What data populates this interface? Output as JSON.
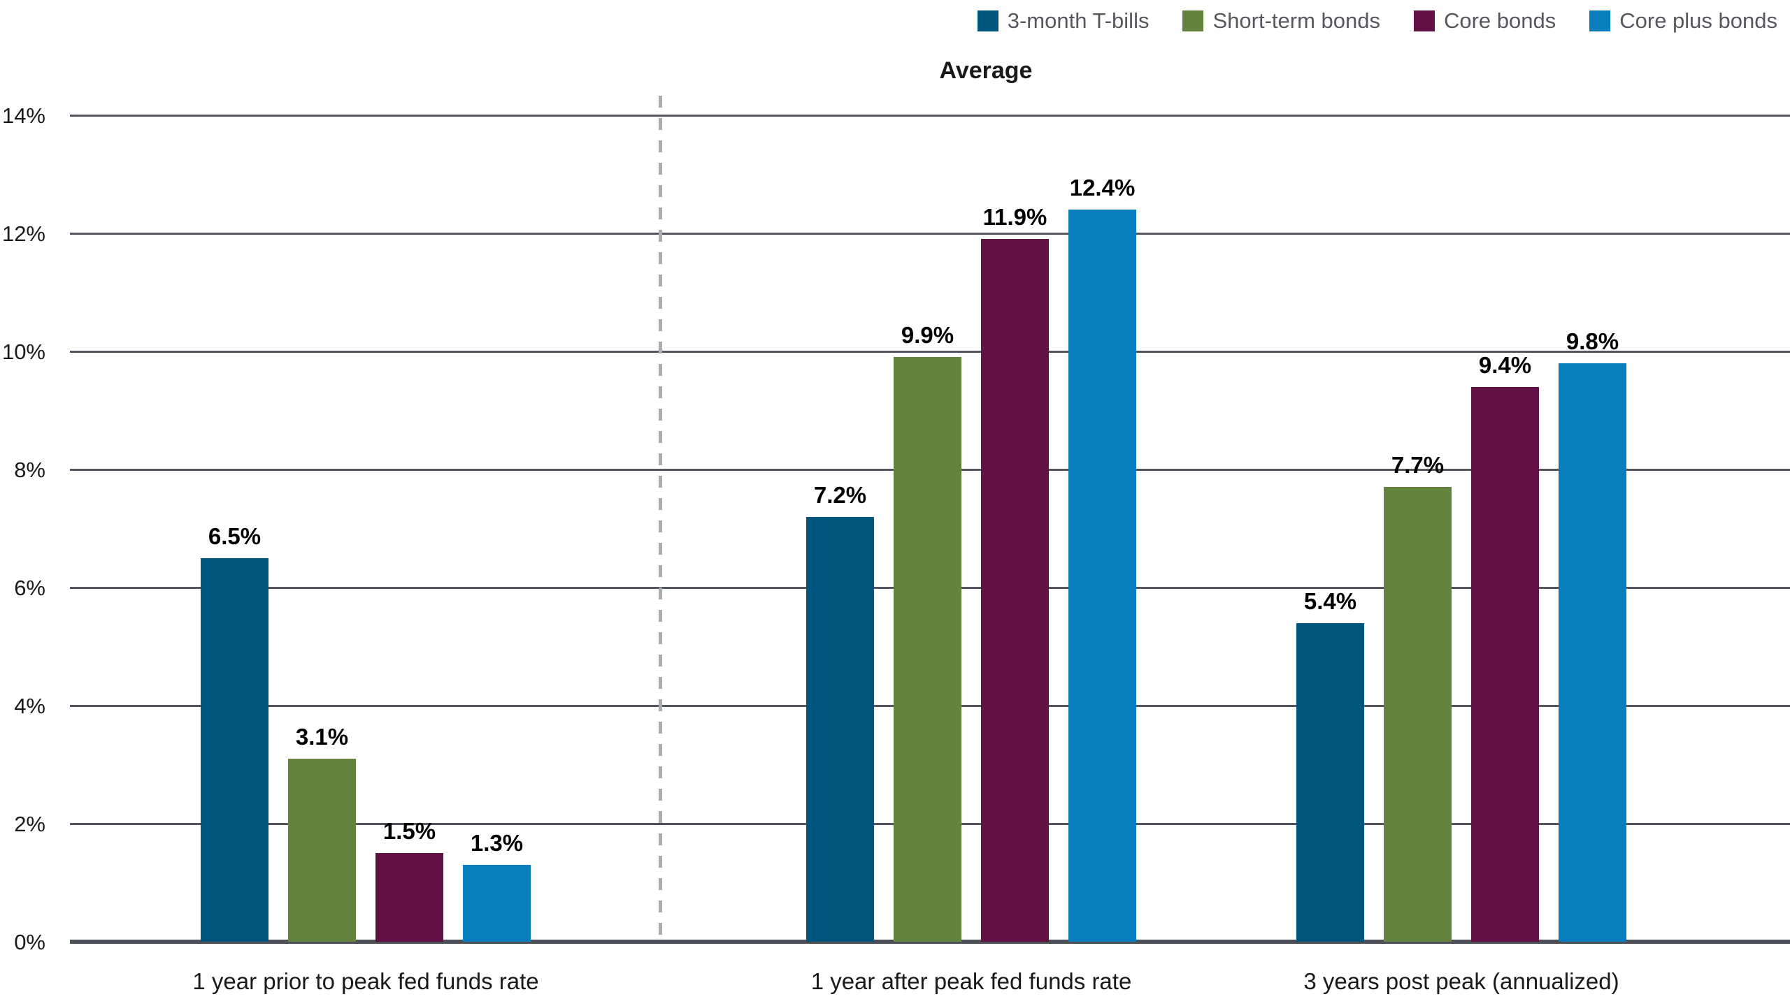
{
  "chart_data": {
    "type": "bar",
    "title": "Average",
    "categories": [
      "1 year prior to peak fed funds rate",
      "1 year after peak fed funds rate",
      "3 years post peak (annualized)"
    ],
    "series": [
      {
        "name": "3-month T-bills",
        "color": "#00567E",
        "values": [
          6.5,
          7.2,
          5.4
        ],
        "labels": [
          "6.5%",
          "7.2%",
          "5.4%"
        ]
      },
      {
        "name": "Short-term bonds",
        "color": "#63833E",
        "values": [
          3.1,
          9.9,
          7.7
        ],
        "labels": [
          "3.1%",
          "9.9%",
          "7.7%"
        ]
      },
      {
        "name": "Core bonds",
        "color": "#611144",
        "values": [
          1.5,
          11.9,
          9.4
        ],
        "labels": [
          "1.5%",
          "11.9%",
          "9.4%"
        ]
      },
      {
        "name": "Core plus bonds",
        "color": "#0A7DBE",
        "values": [
          1.3,
          12.4,
          9.8
        ],
        "labels": [
          "1.3%",
          "12.4%",
          "9.8%"
        ]
      }
    ],
    "y_axis": {
      "ticks": [
        0,
        2,
        4,
        6,
        8,
        10,
        12,
        14
      ],
      "tick_labels": [
        "0%",
        "2%",
        "4%",
        "6%",
        "8%",
        "10%",
        "12%",
        "14%"
      ],
      "range": [
        0,
        14
      ],
      "grid": true
    },
    "legend_position": "top-right",
    "divider": {
      "after_category_index": 0,
      "style": "dashed-vertical"
    },
    "colors": {
      "grid": "#52555D",
      "axis_line": "#4D5058",
      "divider": "#A9ACB1",
      "legend_text": "#55585D",
      "label_text": "#1A1A1A"
    }
  }
}
